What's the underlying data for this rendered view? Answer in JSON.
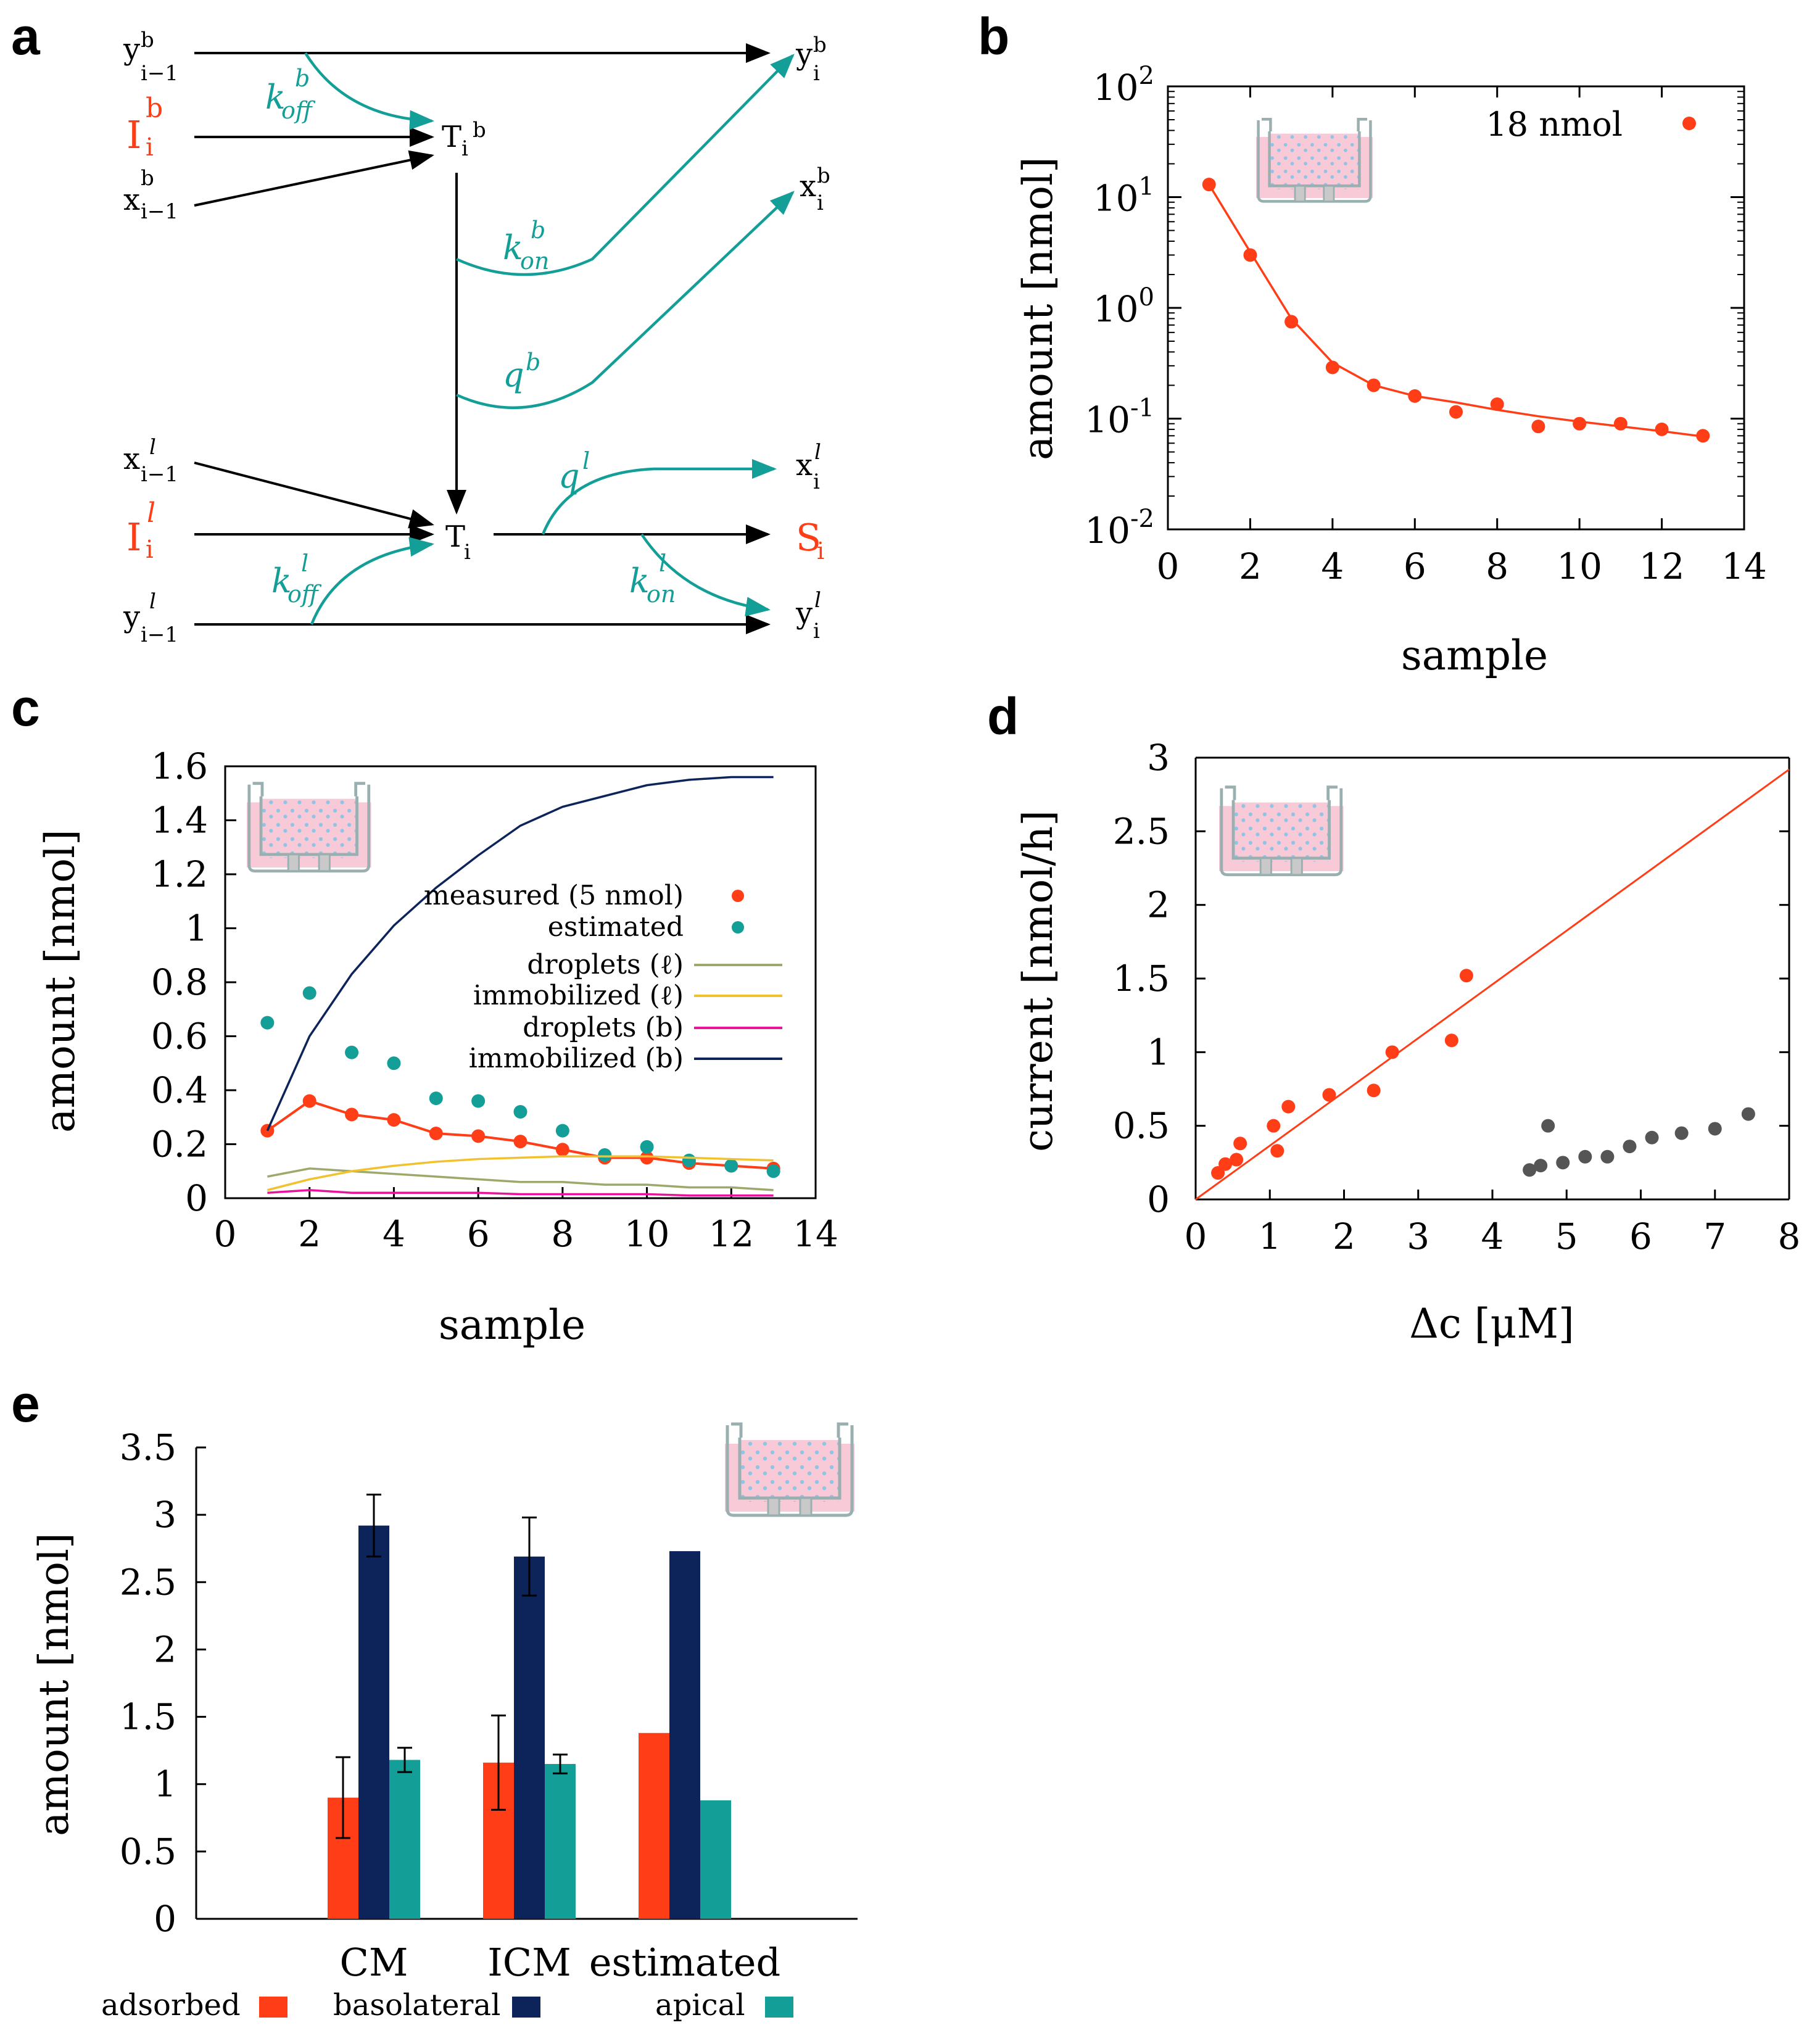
{
  "colors": {
    "red": "#ff3d17",
    "teal": "#149e98",
    "navy": "#0c2459",
    "olive": "#9fa86b",
    "yellow": "#f2c12e",
    "magenta": "#e8159a",
    "gray": "#555555",
    "pink": "#f8c9d6",
    "dots": "#8fc4e6"
  },
  "panel_a": {
    "label": "a",
    "nodes": {
      "y_b_prev": "y",
      "y_b_prev_sup": "b",
      "y_b_prev_sub": "i−1",
      "I_b": "I",
      "I_b_sup": "b",
      "I_b_sub": "i",
      "x_b_prev": "x",
      "x_b_prev_sup": "b",
      "x_b_prev_sub": "i−1",
      "T_b": "T",
      "T_b_sub": "i",
      "T_b_sup": "b",
      "y_b": "y",
      "y_b_sup": "b",
      "y_b_sub": "i",
      "x_b": "x",
      "x_b_sup": "b",
      "x_b_sub": "i",
      "x_l_prev": "x",
      "x_l_prev_sub": "i−1",
      "x_l_prev_sup": "l",
      "I_l": "I",
      "I_l_sup": "l",
      "I_l_sub": "i",
      "y_l_prev": "y",
      "y_l_prev_sup": "l",
      "y_l_prev_sub": "i−1",
      "T": "T",
      "T_sub": "i",
      "x_l": "x",
      "x_l_sup": "l",
      "x_l_sub": "i",
      "S": "S",
      "S_sub": "i",
      "y_l": "y",
      "y_l_sup": "l",
      "y_l_sub": "i"
    },
    "rates": {
      "k_off_b": "k",
      "k_off_b_sub": "off",
      "k_off_b_sup": "b",
      "k_on_b": "k",
      "k_on_b_sub": "on",
      "k_on_b_sup": "b",
      "q_b": "q",
      "q_b_sup": "b",
      "q_l": "q",
      "q_l_sup": "l",
      "k_off_l": "k",
      "k_off_l_sub": "off",
      "k_off_l_sup": "l",
      "k_on_l": "k",
      "k_on_l_sub": "on",
      "k_on_l_sup": "l"
    }
  },
  "chart_data": [
    {
      "panel": "b",
      "type": "scatter",
      "scale_y": "log",
      "xlabel": "sample",
      "ylabel": "amount [nmol]",
      "xlim": [
        0,
        14
      ],
      "xticks": [
        "0",
        "2",
        "4",
        "6",
        "8",
        "10",
        "12",
        "14"
      ],
      "yticks": [
        {
          "base": "10",
          "exp": "2"
        },
        {
          "base": "10",
          "exp": "1"
        },
        {
          "base": "10",
          "exp": "0"
        },
        {
          "base": "10",
          "exp": "-1"
        },
        {
          "base": "10",
          "exp": "-2"
        }
      ],
      "legend": "18 nmol",
      "x": [
        1,
        2,
        3,
        4,
        5,
        6,
        7,
        8,
        9,
        10,
        11,
        12,
        13
      ],
      "y": [
        13,
        3,
        0.75,
        0.29,
        0.2,
        0.16,
        0.115,
        0.135,
        0.085,
        0.09,
        0.09,
        0.08,
        0.07
      ],
      "fit": [
        13,
        3.2,
        0.8,
        0.32,
        0.2,
        0.16,
        0.14,
        0.12,
        0.105,
        0.094,
        0.085,
        0.077,
        0.069
      ]
    },
    {
      "panel": "c",
      "type": "line",
      "xlabel": "sample",
      "ylabel": "amount [nmol]",
      "xlim": [
        0,
        14
      ],
      "ylim": [
        0,
        1.6
      ],
      "xticks": [
        "0",
        "2",
        "4",
        "6",
        "8",
        "10",
        "12",
        "14"
      ],
      "yticks": [
        "0",
        "0.2",
        "0.4",
        "0.6",
        "0.8",
        "1",
        "1.2",
        "1.4",
        "1.6"
      ],
      "x": [
        1,
        2,
        3,
        4,
        5,
        6,
        7,
        8,
        9,
        10,
        11,
        12,
        13
      ],
      "series": [
        {
          "name": "measured (5 nmol)",
          "style": "points+line",
          "color": "#ff3d17",
          "values": [
            0.25,
            0.36,
            0.31,
            0.29,
            0.24,
            0.23,
            0.21,
            0.18,
            0.15,
            0.15,
            0.13,
            0.12,
            0.11
          ]
        },
        {
          "name": "estimated",
          "style": "points",
          "color": "#149e98",
          "values": [
            0.65,
            0.76,
            0.54,
            0.5,
            0.37,
            0.36,
            0.32,
            0.25,
            0.16,
            0.19,
            0.14,
            0.12,
            0.1
          ]
        },
        {
          "name": "droplets (ℓ)",
          "style": "line",
          "color": "#9fa86b",
          "values": [
            0.08,
            0.11,
            0.1,
            0.09,
            0.08,
            0.07,
            0.06,
            0.06,
            0.05,
            0.05,
            0.04,
            0.04,
            0.03
          ]
        },
        {
          "name": "immobilized (ℓ)",
          "style": "line",
          "color": "#f2c12e",
          "values": [
            0.03,
            0.07,
            0.1,
            0.12,
            0.135,
            0.145,
            0.15,
            0.155,
            0.155,
            0.155,
            0.15,
            0.145,
            0.14
          ]
        },
        {
          "name": "droplets (b)",
          "style": "line",
          "color": "#e8159a",
          "values": [
            0.02,
            0.03,
            0.02,
            0.02,
            0.02,
            0.02,
            0.015,
            0.015,
            0.015,
            0.015,
            0.01,
            0.01,
            0.01
          ]
        },
        {
          "name": "immobilized (b)",
          "style": "line",
          "color": "#0c2459",
          "values": [
            0.25,
            0.6,
            0.83,
            1.01,
            1.15,
            1.27,
            1.38,
            1.45,
            1.49,
            1.53,
            1.55,
            1.56,
            1.56
          ]
        }
      ]
    },
    {
      "panel": "d",
      "type": "scatter",
      "xlabel": "Δc [μM]",
      "ylabel": "current [nmol/h]",
      "xlim": [
        0,
        8
      ],
      "ylim": [
        0,
        3
      ],
      "xticks": [
        "0",
        "1",
        "2",
        "3",
        "4",
        "5",
        "6",
        "7",
        "8"
      ],
      "yticks": [
        "0",
        "0.5",
        "1",
        "1.5",
        "2",
        "2.5",
        "3"
      ],
      "fit_line": {
        "slope": 0.365,
        "intercept": 0
      },
      "series": [
        {
          "name": "red",
          "color": "#ff3d17",
          "x": [
            0.3,
            0.4,
            0.55,
            0.6,
            1.05,
            1.1,
            1.25,
            1.8,
            2.4,
            2.65,
            3.45,
            3.65
          ],
          "y": [
            0.18,
            0.24,
            0.27,
            0.38,
            0.5,
            0.33,
            0.63,
            0.71,
            0.74,
            1.0,
            1.08,
            1.52
          ]
        },
        {
          "name": "gray",
          "color": "#555555",
          "x": [
            4.5,
            4.65,
            4.75,
            4.95,
            5.25,
            5.55,
            5.85,
            6.15,
            6.55,
            7.0,
            7.45
          ],
          "y": [
            0.2,
            0.23,
            0.5,
            0.25,
            0.29,
            0.29,
            0.36,
            0.42,
            0.45,
            0.48,
            0.58
          ]
        }
      ]
    },
    {
      "panel": "e",
      "type": "bar",
      "ylabel": "amount [nmol]",
      "ylim": [
        0,
        3.5
      ],
      "yticks": [
        "0",
        "0.5",
        "1",
        "1.5",
        "2",
        "2.5",
        "3",
        "3.5"
      ],
      "categories": [
        "CM",
        "ICM",
        "estimated"
      ],
      "series": [
        {
          "name": "adsorbed",
          "color": "#ff3d17",
          "values": [
            0.9,
            1.16,
            1.38
          ],
          "errors": [
            0.3,
            0.35,
            0
          ]
        },
        {
          "name": "basolateral",
          "color": "#0c2459",
          "values": [
            2.92,
            2.69,
            2.73
          ],
          "errors": [
            0.23,
            0.29,
            0
          ]
        },
        {
          "name": "apical",
          "color": "#149e98",
          "values": [
            1.18,
            1.15,
            0.88
          ],
          "errors": [
            0.09,
            0.07,
            0
          ]
        }
      ]
    }
  ],
  "panel_labels": {
    "b": "b",
    "c": "c",
    "d": "d",
    "e": "e"
  }
}
